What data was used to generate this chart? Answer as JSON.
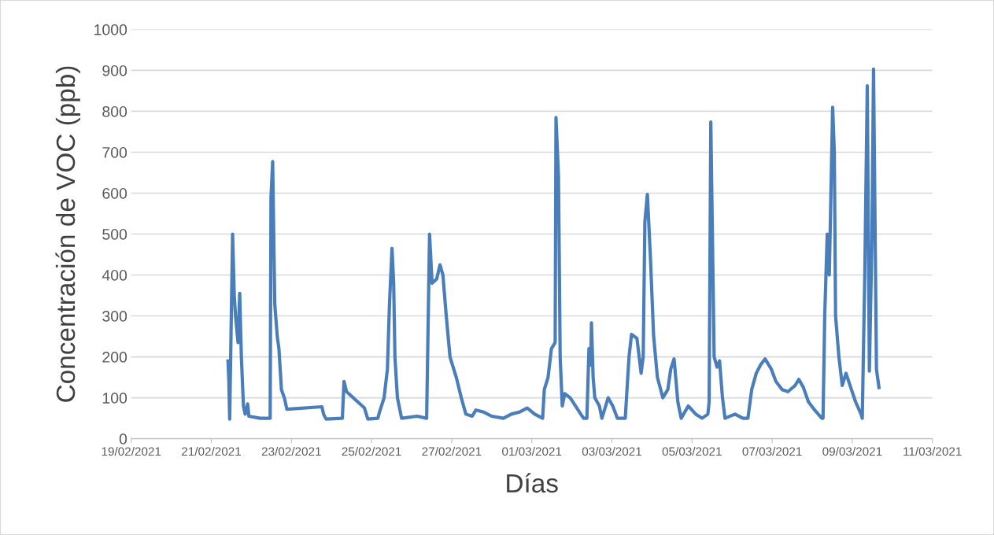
{
  "chart_data": {
    "type": "line",
    "xlabel": "Días",
    "ylabel": "Concentración de VOC (ppb)",
    "xlim": [
      "2021-02-19",
      "2021-03-11"
    ],
    "xticks": [
      {
        "value": "2021-02-19",
        "label": "19/02/2021"
      },
      {
        "value": "2021-02-21",
        "label": "21/02/2021"
      },
      {
        "value": "2021-02-23",
        "label": "23/02/2021"
      },
      {
        "value": "2021-02-25",
        "label": "25/02/2021"
      },
      {
        "value": "2021-02-27",
        "label": "27/02/2021"
      },
      {
        "value": "2021-03-01",
        "label": "01/03/2021"
      },
      {
        "value": "2021-03-03",
        "label": "03/03/2021"
      },
      {
        "value": "2021-03-05",
        "label": "05/03/2021"
      },
      {
        "value": "2021-03-07",
        "label": "07/03/2021"
      },
      {
        "value": "2021-03-09",
        "label": "09/03/2021"
      },
      {
        "value": "2021-03-11",
        "label": "11/03/2021"
      }
    ],
    "ylim": [
      0,
      1000
    ],
    "yticks": [
      0,
      100,
      200,
      300,
      400,
      500,
      600,
      700,
      800,
      900,
      1000
    ],
    "grid": "y",
    "marker": "none",
    "line_style": "solid",
    "series": [
      {
        "color": "#4a7ebb",
        "x": [
          "2021-02-21T10:00",
          "2021-02-21T10:30",
          "2021-02-21T11:00",
          "2021-02-21T12:45",
          "2021-02-21T13:45",
          "2021-02-21T14:30",
          "2021-02-21T16:00",
          "2021-02-21T17:00",
          "2021-02-21T18:00",
          "2021-02-21T19:15",
          "2021-02-21T20:15",
          "2021-02-21T21:45",
          "2021-02-21T22:30",
          "2021-02-22T05:15",
          "2021-02-22T11:15",
          "2021-02-22T11:45",
          "2021-02-22T12:45",
          "2021-02-22T14:00",
          "2021-02-22T15:30",
          "2021-02-22T16:30",
          "2021-02-22T18:00",
          "2021-02-22T19:45",
          "2021-02-22T21:15",
          "2021-02-23T18:15",
          "2021-02-23T19:15",
          "2021-02-23T20:45",
          "2021-02-24T06:30",
          "2021-02-24T07:30",
          "2021-02-24T09:00",
          "2021-02-24T19:45",
          "2021-02-24T21:45",
          "2021-02-25T03:45",
          "2021-02-25T04:45",
          "2021-02-25T07:30",
          "2021-02-25T09:30",
          "2021-02-25T10:45",
          "2021-02-25T12:15",
          "2021-02-25T13:15",
          "2021-02-25T14:00",
          "2021-02-25T15:30",
          "2021-02-25T18:00",
          "2021-02-26T03:15",
          "2021-02-26T09:00",
          "2021-02-26T10:45",
          "2021-02-26T12:15",
          "2021-02-26T15:00",
          "2021-02-26T17:00",
          "2021-02-26T18:45",
          "2021-02-26T20:45",
          "2021-02-26T23:00",
          "2021-02-27T02:45",
          "2021-02-27T05:45",
          "2021-02-27T08:30",
          "2021-02-27T12:15",
          "2021-02-27T14:30",
          "2021-02-27T19:15",
          "2021-02-28T00:00",
          "2021-02-28T07:00",
          "2021-02-28T11:45",
          "2021-02-28T16:30",
          "2021-02-28T21:15",
          "2021-03-01T01:45",
          "2021-03-01T06:30",
          "2021-03-01T07:30",
          "2021-03-01T09:45",
          "2021-03-01T11:45",
          "2021-03-01T14:00",
          "2021-03-01T14:30",
          "2021-03-01T16:00",
          "2021-03-01T17:00",
          "2021-03-01T18:15",
          "2021-03-01T19:45",
          "2021-03-01T23:00",
          "2021-03-02T03:45",
          "2021-03-02T07:00",
          "2021-03-02T09:00",
          "2021-03-02T10:15",
          "2021-03-02T11:15",
          "2021-03-02T11:45",
          "2021-03-02T12:45",
          "2021-03-02T13:45",
          "2021-03-02T16:30",
          "2021-03-02T18:00",
          "2021-03-02T21:45",
          "2021-03-03T00:30",
          "2021-03-03T03:15",
          "2021-03-03T08:00",
          "2021-03-03T10:15",
          "2021-03-03T11:45",
          "2021-03-03T15:00",
          "2021-03-03T17:30",
          "2021-03-03T18:45",
          "2021-03-03T19:45",
          "2021-03-03T21:15",
          "2021-03-03T23:00",
          "2021-03-04T01:00",
          "2021-03-04T03:15",
          "2021-03-04T06:30",
          "2021-03-04T09:30",
          "2021-03-04T11:15",
          "2021-03-04T13:15",
          "2021-03-04T15:30",
          "2021-03-04T17:30",
          "2021-03-04T21:45",
          "2021-03-05T02:15",
          "2021-03-05T06:00",
          "2021-03-05T09:30",
          "2021-03-05T10:15",
          "2021-03-05T11:15",
          "2021-03-05T13:15",
          "2021-03-05T15:00",
          "2021-03-05T16:30",
          "2021-03-05T18:15",
          "2021-03-05T19:45",
          "2021-03-06T01:45",
          "2021-03-06T06:30",
          "2021-03-06T09:30",
          "2021-03-06T11:45",
          "2021-03-06T14:30",
          "2021-03-06T17:00",
          "2021-03-06T19:45",
          "2021-03-06T23:30",
          "2021-03-07T02:15",
          "2021-03-07T06:00",
          "2021-03-07T09:30",
          "2021-03-07T13:45",
          "2021-03-07T16:00",
          "2021-03-07T18:45",
          "2021-03-07T21:45",
          "2021-03-08T01:30",
          "2021-03-08T05:45",
          "2021-03-08T06:30",
          "2021-03-08T07:30",
          "2021-03-08T09:00",
          "2021-03-08T10:15",
          "2021-03-08T12:15",
          "2021-03-08T13:15",
          "2021-03-08T14:00",
          "2021-03-08T16:00",
          "2021-03-08T18:00",
          "2021-03-08T20:15",
          "2021-03-08T23:30",
          "2021-03-09T02:00",
          "2021-03-09T05:15",
          "2021-03-09T06:00",
          "2021-03-09T07:30",
          "2021-03-09T09:00",
          "2021-03-09T10:15",
          "2021-03-09T11:45",
          "2021-03-09T12:45",
          "2021-03-09T14:30",
          "2021-03-09T16:00"
        ],
        "values": [
          190,
          140,
          48,
          500,
          350,
          300,
          235,
          355,
          200,
          80,
          60,
          85,
          55,
          50,
          50,
          590,
          677,
          330,
          250,
          220,
          120,
          100,
          72,
          78,
          60,
          48,
          50,
          140,
          115,
          75,
          48,
          50,
          65,
          100,
          170,
          330,
          465,
          380,
          200,
          100,
          50,
          55,
          50,
          500,
          380,
          390,
          425,
          400,
          300,
          200,
          150,
          100,
          60,
          55,
          70,
          65,
          55,
          50,
          60,
          65,
          75,
          60,
          50,
          120,
          150,
          220,
          235,
          785,
          640,
          200,
          80,
          110,
          100,
          70,
          50,
          50,
          220,
          180,
          283,
          150,
          100,
          80,
          50,
          100,
          80,
          50,
          50,
          200,
          255,
          245,
          160,
          200,
          530,
          597,
          450,
          250,
          150,
          100,
          120,
          170,
          195,
          90,
          50,
          80,
          60,
          50,
          60,
          90,
          774,
          200,
          175,
          190,
          100,
          50,
          60,
          50,
          50,
          120,
          160,
          180,
          195,
          170,
          140,
          120,
          115,
          130,
          145,
          125,
          90,
          70,
          50,
          50,
          300,
          500,
          400,
          810,
          700,
          300,
          200,
          130,
          160,
          120,
          90,
          60,
          50,
          400,
          862,
          165,
          480,
          903,
          170,
          125
        ]
      }
    ]
  }
}
